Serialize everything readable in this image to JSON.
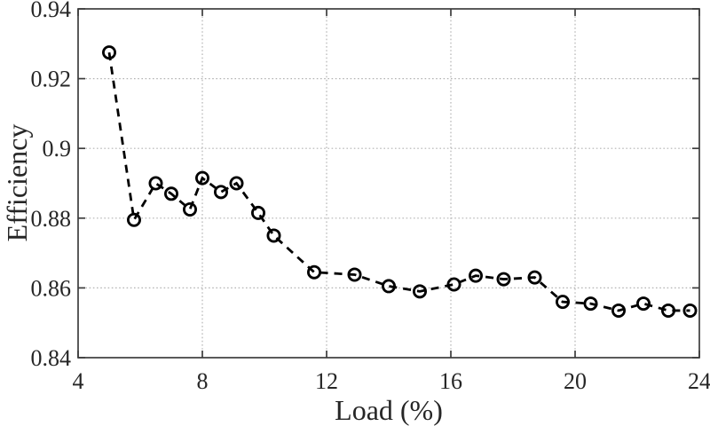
{
  "colors": {
    "background": "#ffffff",
    "line": "#000000",
    "marker": "#000000",
    "axis": "#3d3d3d",
    "grid": "#b3b3b3",
    "text": "#262626"
  },
  "chart_data": {
    "type": "line",
    "title": "",
    "xlabel": "Load (%)",
    "ylabel": "Efficiency",
    "xlim": [
      4,
      24
    ],
    "ylim": [
      0.84,
      0.94
    ],
    "xticks": [
      4,
      8,
      12,
      16,
      20,
      24
    ],
    "xtick_labels": [
      "4",
      "8",
      "12",
      "16",
      "20",
      "24"
    ],
    "yticks": [
      0.84,
      0.86,
      0.88,
      0.9,
      0.92,
      0.94
    ],
    "ytick_labels": [
      "0.84",
      "0.86",
      "0.88",
      "0.9",
      "0.92",
      "0.94"
    ],
    "grid": true,
    "grid_style": "dotted",
    "legend": "none",
    "line_style": "dashed",
    "marker": "open-circle",
    "series": [
      {
        "name": "Efficiency",
        "x": [
          5.0,
          5.8,
          6.5,
          7.0,
          7.6,
          8.0,
          8.6,
          9.1,
          9.8,
          10.3,
          11.6,
          12.9,
          14.0,
          15.0,
          16.1,
          16.8,
          17.7,
          18.7,
          19.6,
          20.5,
          21.4,
          22.2,
          23.0,
          23.7
        ],
        "y": [
          0.9275,
          0.8795,
          0.89,
          0.887,
          0.8825,
          0.8915,
          0.8875,
          0.89,
          0.8815,
          0.875,
          0.8645,
          0.8638,
          0.8605,
          0.859,
          0.861,
          0.8635,
          0.8625,
          0.863,
          0.856,
          0.8555,
          0.8535,
          0.8555,
          0.8535,
          0.8535
        ]
      }
    ]
  }
}
